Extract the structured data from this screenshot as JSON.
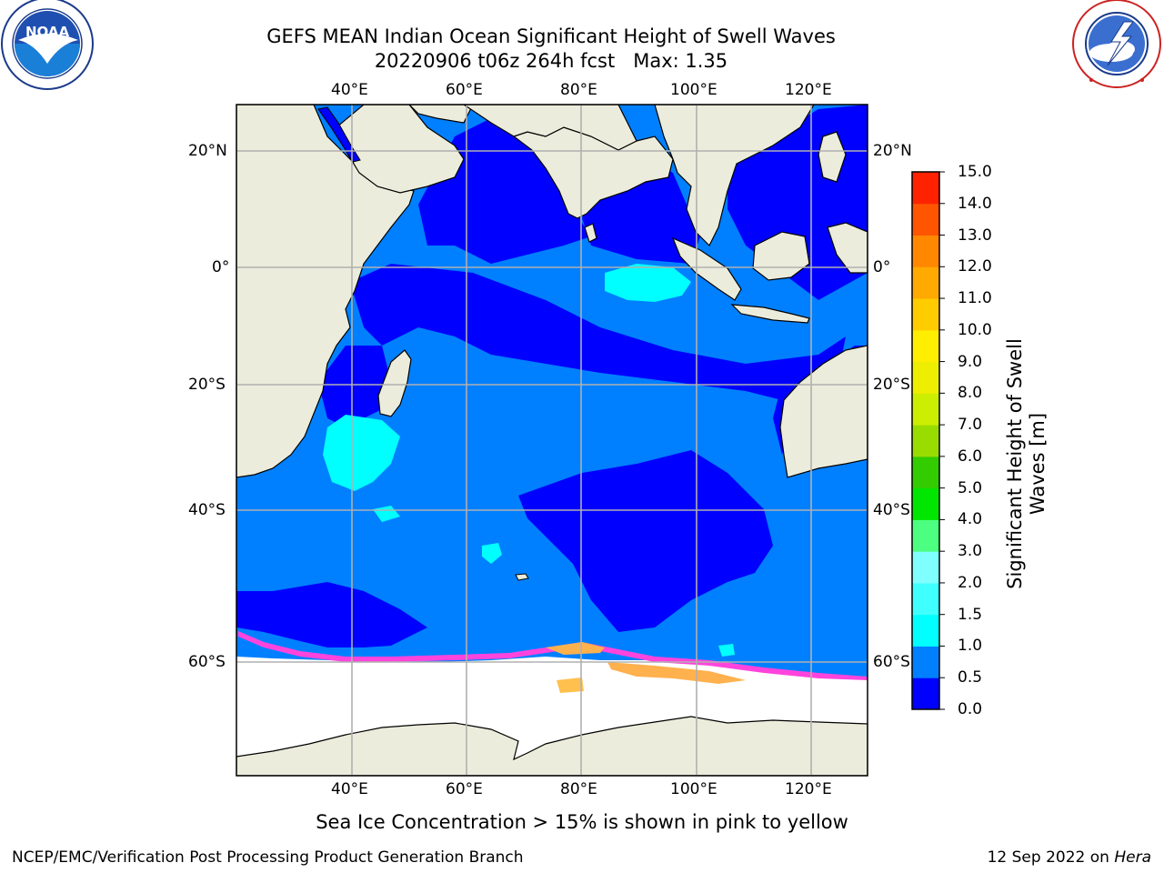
{
  "header": {
    "title_line1": "GEFS MEAN Indian Ocean Significant Height of Swell Waves",
    "title_line2": "20220906 t06z 264h fcst   Max: 1.35"
  },
  "logos": {
    "noaa": {
      "label": "NOAA",
      "ring_text": "NATIONAL OCEANIC AND ATMOSPHERIC ADMINISTRATION · U.S. DEPARTMENT OF COMMERCE"
    },
    "nws": {
      "ring_text": "NATIONAL WEATHER SERVICE"
    }
  },
  "map": {
    "lon_labels": [
      "40°E",
      "60°E",
      "80°E",
      "100°E",
      "120°E"
    ],
    "lat_labels": [
      "20°N",
      "0°",
      "20°S",
      "40°S",
      "60°S"
    ],
    "lon_range": [
      20,
      130
    ],
    "lat_range": [
      -72,
      28
    ],
    "note": "Sea Ice Concentration > 15% is shown in pink to yellow"
  },
  "colorbar": {
    "title_line1": "Significant Height of Swell",
    "title_line2": "Waves [m]",
    "ticks": [
      "0.0",
      "0.5",
      "1.0",
      "1.5",
      "2.0",
      "3.0",
      "4.0",
      "5.0",
      "6.0",
      "7.0",
      "8.0",
      "9.0",
      "10.0",
      "11.0",
      "12.0",
      "13.0",
      "14.0",
      "15.0"
    ],
    "colors": [
      "#0000ff",
      "#0080ff",
      "#00ffff",
      "#40ffff",
      "#80ffff",
      "#4dff80",
      "#00e600",
      "#33cc00",
      "#99dd00",
      "#ccee00",
      "#eeee00",
      "#ffee00",
      "#ffcc00",
      "#ffaa00",
      "#ff8800",
      "#ff5500",
      "#ff2200"
    ]
  },
  "colors": {
    "land": "#ececdc",
    "ice": "#ffffff",
    "deep_blue": "#0000ff",
    "mid_blue": "#0080ff",
    "cyan": "#00ffff",
    "grid": "#b0b0b0"
  },
  "footer": {
    "left": "NCEP/EMC/Verification Post Processing Product Generation Branch",
    "date": "12 Sep 2022 on",
    "machine": "Hera"
  }
}
